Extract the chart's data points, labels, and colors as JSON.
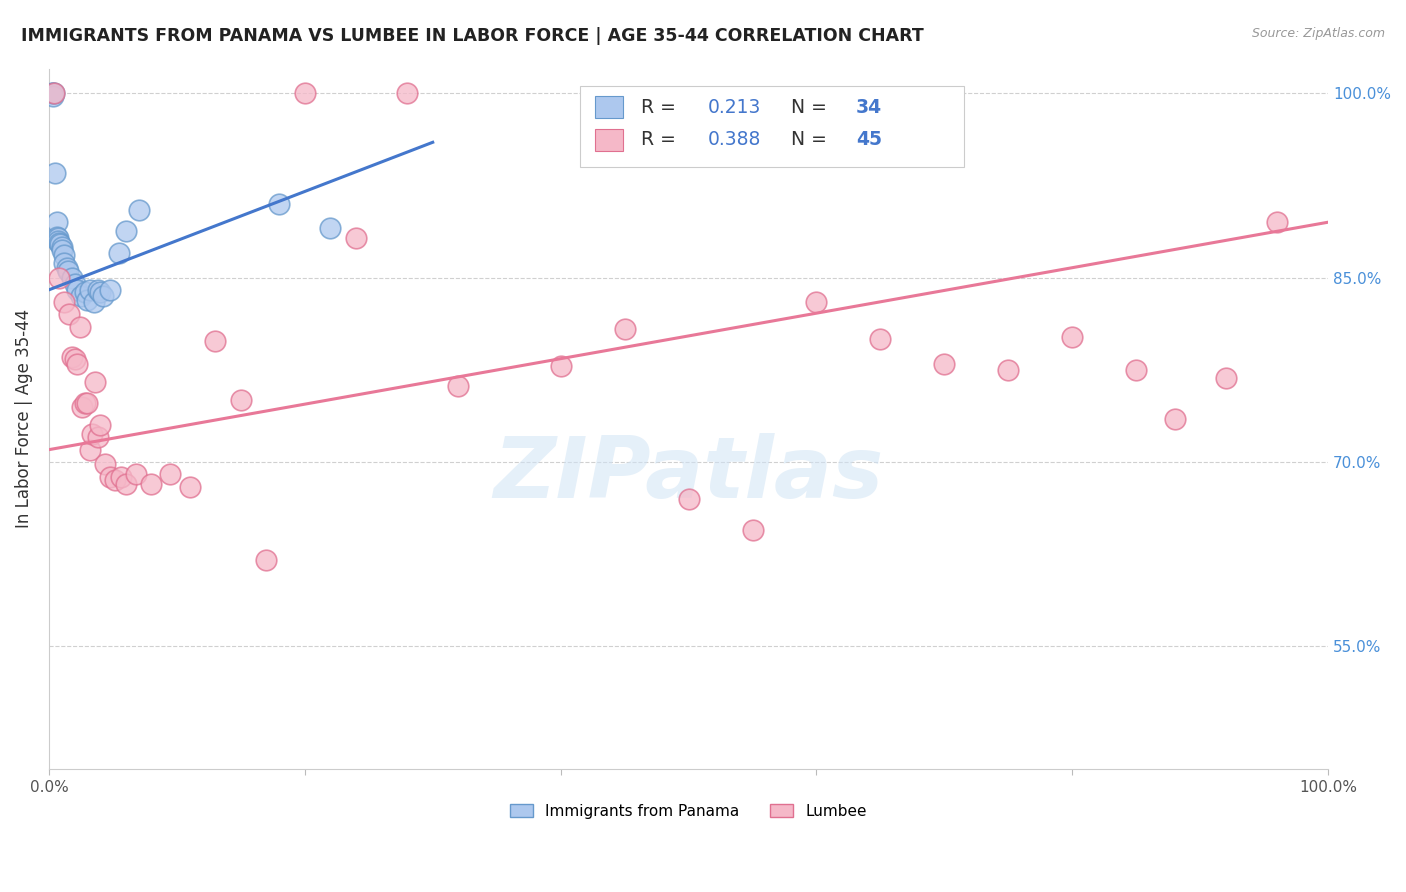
{
  "title": "IMMIGRANTS FROM PANAMA VS LUMBEE IN LABOR FORCE | AGE 35-44 CORRELATION CHART",
  "source": "Source: ZipAtlas.com",
  "ylabel": "In Labor Force | Age 35-44",
  "xlim": [
    0.0,
    1.0
  ],
  "ylim": [
    0.45,
    1.02
  ],
  "ytick_positions": [
    0.55,
    0.7,
    0.85,
    1.0
  ],
  "ytick_labels_right": [
    "55.0%",
    "70.0%",
    "85.0%",
    "100.0%"
  ],
  "watermark": "ZIPatlas",
  "panama_color": "#adc8ee",
  "panama_edge_color": "#6699cc",
  "lumbee_color": "#f5b8c8",
  "lumbee_edge_color": "#e07090",
  "panama_line_color": "#4477cc",
  "lumbee_line_color": "#e87898",
  "legend_R_panama": "R =  0.213",
  "legend_N_panama": "N = 34",
  "legend_R_lumbee": "R =  0.388",
  "legend_N_lumbee": "N = 45",
  "legend_text_color": "#333333",
  "legend_value_color": "#4477cc",
  "panama_scatter_x": [
    0.002,
    0.003,
    0.003,
    0.004,
    0.005,
    0.006,
    0.006,
    0.007,
    0.007,
    0.008,
    0.009,
    0.01,
    0.01,
    0.012,
    0.012,
    0.014,
    0.015,
    0.018,
    0.02,
    0.022,
    0.025,
    0.028,
    0.03,
    0.032,
    0.035,
    0.038,
    0.04,
    0.042,
    0.048,
    0.055,
    0.06,
    0.07,
    0.18,
    0.22
  ],
  "panama_scatter_y": [
    1.0,
    1.0,
    0.998,
    1.0,
    0.935,
    0.895,
    0.883,
    0.882,
    0.88,
    0.878,
    0.877,
    0.875,
    0.872,
    0.868,
    0.862,
    0.858,
    0.855,
    0.85,
    0.845,
    0.84,
    0.835,
    0.838,
    0.832,
    0.84,
    0.83,
    0.84,
    0.838,
    0.835,
    0.84,
    0.87,
    0.888,
    0.905,
    0.91,
    0.89
  ],
  "lumbee_scatter_x": [
    0.004,
    0.008,
    0.012,
    0.016,
    0.018,
    0.02,
    0.022,
    0.024,
    0.026,
    0.028,
    0.03,
    0.032,
    0.034,
    0.036,
    0.038,
    0.04,
    0.044,
    0.048,
    0.052,
    0.056,
    0.06,
    0.068,
    0.08,
    0.095,
    0.11,
    0.13,
    0.15,
    0.17,
    0.2,
    0.24,
    0.28,
    0.32,
    0.4,
    0.45,
    0.5,
    0.55,
    0.6,
    0.65,
    0.7,
    0.75,
    0.8,
    0.85,
    0.88,
    0.92,
    0.96
  ],
  "lumbee_scatter_y": [
    1.0,
    0.85,
    0.83,
    0.82,
    0.785,
    0.784,
    0.78,
    0.81,
    0.745,
    0.748,
    0.748,
    0.71,
    0.723,
    0.765,
    0.72,
    0.73,
    0.698,
    0.688,
    0.685,
    0.688,
    0.682,
    0.69,
    0.682,
    0.69,
    0.68,
    0.798,
    0.75,
    0.62,
    1.0,
    0.882,
    1.0,
    0.762,
    0.778,
    0.808,
    0.67,
    0.645,
    0.83,
    0.8,
    0.78,
    0.775,
    0.802,
    0.775,
    0.735,
    0.768,
    0.895
  ],
  "panama_trend_x": [
    0.0,
    0.3
  ],
  "panama_trend_y": [
    0.84,
    0.96
  ],
  "lumbee_trend_x": [
    0.0,
    1.0
  ],
  "lumbee_trend_y": [
    0.71,
    0.895
  ],
  "grid_color": "#d0d0d0",
  "background_color": "#ffffff"
}
